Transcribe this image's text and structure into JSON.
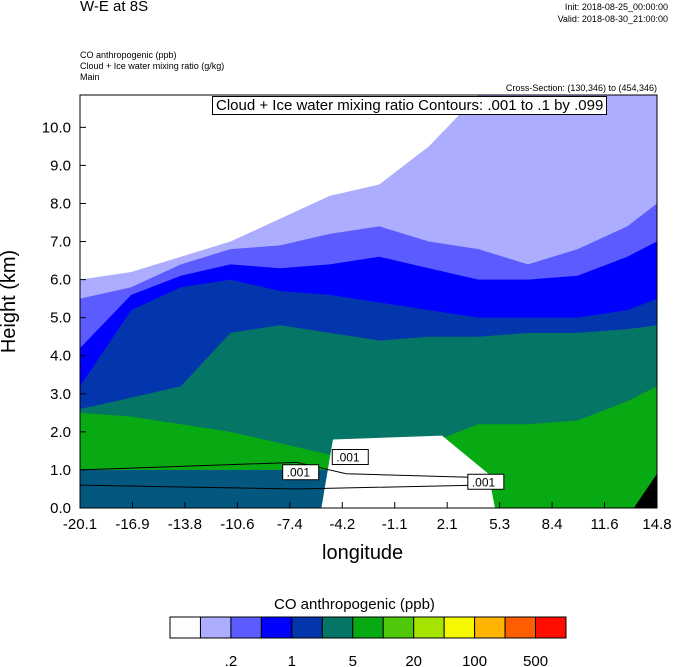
{
  "header": {
    "title": "W-E at 8S",
    "init": "Init: 2018-08-25_00:00:00",
    "valid": "Valid: 2018-08-30_21:00:00",
    "fields": [
      "CO anthropogenic   (ppb)",
      "Cloud + Ice water mixing ratio   (g/kg)",
      "Main"
    ],
    "cross_section": "Cross-Section: (130,346) to (454,346)"
  },
  "chart_data": {
    "type": "area",
    "title": "W-E at 8S",
    "contour_title": "Cloud + Ice water mixing ratio Contours: .001 to .1 by .099",
    "xlabel": "longitude",
    "ylabel": "Height (km)",
    "xlim": [
      -20.1,
      14.8
    ],
    "ylim": [
      0,
      10.85
    ],
    "xticks": [
      "-20.1",
      "-16.9",
      "-13.8",
      "-10.6",
      "-7.4",
      "-4.2",
      "-1.1",
      "2.1",
      "5.3",
      "8.4",
      "11.6",
      "14.8"
    ],
    "yticks": [
      "0.0",
      "1.0",
      "2.0",
      "3.0",
      "4.0",
      "5.0",
      "6.0",
      "7.0",
      "8.0",
      "9.0",
      "10.0"
    ],
    "lon_samples": [
      -20.1,
      -17,
      -14,
      -11,
      -8,
      -5,
      -2,
      1,
      4,
      7,
      10,
      13,
      14.8
    ],
    "bands": [
      {
        "color": "#adadff",
        "top_km": [
          6.0,
          6.2,
          6.6,
          7.0,
          7.6,
          8.2,
          8.5,
          9.5,
          10.85,
          10.85,
          10.85,
          10.85,
          10.85
        ]
      },
      {
        "color": "#5b5bff",
        "top_km": [
          5.5,
          5.8,
          6.4,
          6.8,
          6.9,
          7.2,
          7.4,
          7.0,
          6.8,
          6.4,
          6.8,
          7.4,
          8.0
        ]
      },
      {
        "color": "#0000ff",
        "top_km": [
          4.2,
          5.6,
          6.1,
          6.4,
          6.3,
          6.4,
          6.6,
          6.3,
          6.0,
          6.0,
          6.1,
          6.6,
          7.0
        ]
      },
      {
        "color": "#0335ad",
        "top_km": [
          3.2,
          5.2,
          5.8,
          6.0,
          5.7,
          5.6,
          5.4,
          5.2,
          5.0,
          5.0,
          5.0,
          5.2,
          5.5
        ]
      },
      {
        "color": "#057565",
        "top_km": [
          2.6,
          2.9,
          3.2,
          4.6,
          4.8,
          4.6,
          4.4,
          4.5,
          4.5,
          4.6,
          4.6,
          4.7,
          4.8
        ]
      },
      {
        "color": "#08aa14",
        "top_km": [
          2.5,
          2.4,
          2.2,
          2.0,
          1.7,
          1.4,
          1.6,
          1.7,
          2.2,
          2.2,
          2.3,
          2.8,
          3.2
        ]
      }
    ],
    "contour_labels": [
      ".001",
      ".001",
      ".001"
    ],
    "colorbar": {
      "title": "CO anthropogenic  (ppb)",
      "colors": [
        "#fdfdfd",
        "#adadff",
        "#5b5bff",
        "#0000ff",
        "#0335ad",
        "#057565",
        "#08aa14",
        "#4fc80a",
        "#a6e400",
        "#f5f800",
        "#ffb400",
        "#ff5e00",
        "#ff0d00"
      ],
      "labels": [
        ".2",
        "1",
        "5",
        "20",
        "100",
        "500"
      ]
    }
  }
}
